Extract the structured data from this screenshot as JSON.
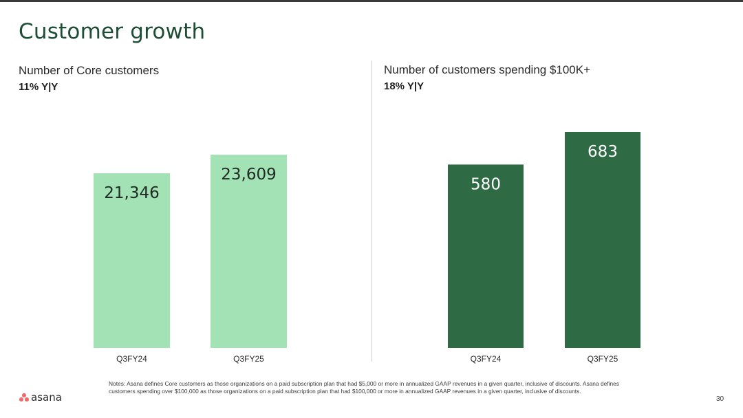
{
  "title": "Customer growth",
  "left": {
    "subtitle": "Number of Core customers",
    "yoy": "11% Y|Y"
  },
  "right": {
    "subtitle": "Number of customers spending $100K+",
    "yoy": "18% Y|Y"
  },
  "colors": {
    "left_bar": "#a3e2b5",
    "right_bar": "#2e6b45",
    "left_label": "#1f2a24",
    "right_label": "#ffffff",
    "title": "#1d4d35"
  },
  "chart_data": [
    {
      "type": "bar",
      "title": "Number of Core customers",
      "subtitle": "11% Y|Y",
      "categories": [
        "Q3FY24",
        "Q3FY25"
      ],
      "values": [
        21346,
        23609
      ],
      "labels": [
        "21,346",
        "23,609"
      ],
      "ylim": [
        0,
        30000
      ],
      "grid": false,
      "xlabel": "",
      "ylabel": ""
    },
    {
      "type": "bar",
      "title": "Number of customers spending $100K+",
      "subtitle": "18% Y|Y",
      "categories": [
        "Q3FY24",
        "Q3FY25"
      ],
      "values": [
        580,
        683
      ],
      "labels": [
        "580",
        "683"
      ],
      "ylim": [
        0,
        770
      ],
      "grid": false,
      "xlabel": "",
      "ylabel": ""
    }
  ],
  "notes": "Notes: Asana defines Core customers as those organizations on a paid subscription plan that had $5,000 or more in annualized GAAP revenues in a given quarter, inclusive of discounts. Asana defines customers spending over $100,000 as those organizations on a paid subscription plan that had $100,000 or more in annualized GAAP revenues in a given quarter, inclusive of discounts.",
  "logo": {
    "text": "asana"
  },
  "page_number": "30"
}
